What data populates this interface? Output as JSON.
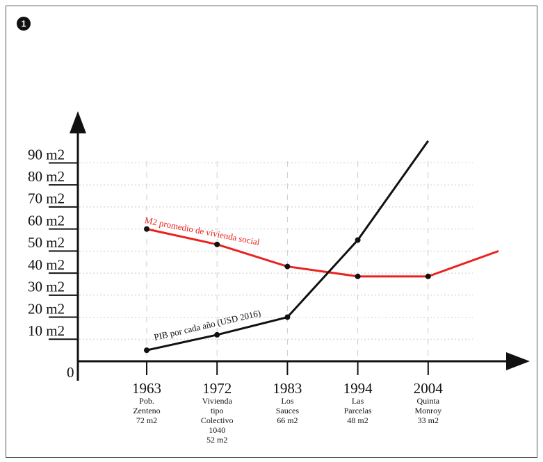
{
  "badge": "1",
  "chart_data": {
    "type": "line",
    "categories": [
      "1963",
      "1972",
      "1983",
      "1994",
      "2004",
      null
    ],
    "category_notes": [
      [
        "Pob.",
        "Zenteno",
        "72 m2"
      ],
      [
        "Vivienda",
        "tipo",
        "Colectivo",
        "1040",
        "52 m2"
      ],
      [
        "Los",
        "Sauces",
        "66 m2"
      ],
      [
        "Las",
        "Parcelas",
        "48 m2"
      ],
      [
        "Quinta",
        "Monroy",
        "33 m2"
      ],
      null
    ],
    "series": [
      {
        "name": "M2 promedio de vivienda social",
        "color": "#e8231f",
        "values": [
          60,
          53,
          43,
          38.5,
          38.5,
          50
        ]
      },
      {
        "name": "PIB por cada año (USD 2016)",
        "color": "#111111",
        "values": [
          5,
          12,
          20,
          55,
          100,
          null
        ]
      }
    ],
    "ylim": [
      0,
      110
    ],
    "yticks": [
      {
        "value": 0,
        "label": "0"
      },
      {
        "value": 10,
        "label": "10 m2"
      },
      {
        "value": 20,
        "label": "20 m2"
      },
      {
        "value": 30,
        "label": "30 m2"
      },
      {
        "value": 40,
        "label": "40 m2"
      },
      {
        "value": 50,
        "label": "50 m2"
      },
      {
        "value": 60,
        "label": "60 m2"
      },
      {
        "value": 70,
        "label": "70 m2"
      },
      {
        "value": 80,
        "label": "80 m2"
      },
      {
        "value": 90,
        "label": "90 m2"
      }
    ],
    "grid": true
  }
}
